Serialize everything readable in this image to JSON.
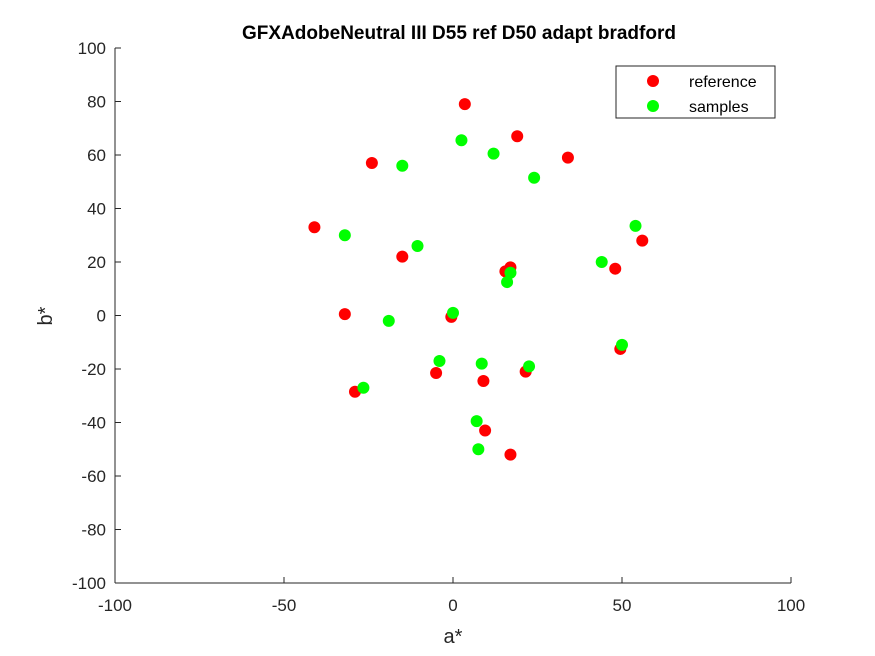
{
  "chart_data": {
    "type": "scatter",
    "title": "GFXAdobeNeutral III D55 ref D50 adapt bradford",
    "xlabel": "a*",
    "ylabel": "b*",
    "xlim": [
      -100,
      100
    ],
    "ylim": [
      -100,
      100
    ],
    "xticks": [
      -100,
      -50,
      0,
      50,
      100
    ],
    "yticks": [
      -100,
      -80,
      -60,
      -40,
      -20,
      0,
      20,
      40,
      60,
      80,
      100
    ],
    "grid": false,
    "legend_position": "top-right",
    "series": [
      {
        "name": "reference",
        "color": "#ff0000",
        "points": [
          [
            3.5,
            79
          ],
          [
            19,
            67
          ],
          [
            34,
            59
          ],
          [
            -24,
            57
          ],
          [
            -41,
            33
          ],
          [
            56,
            28
          ],
          [
            -15,
            22
          ],
          [
            48,
            17.5
          ],
          [
            17,
            18
          ],
          [
            15.5,
            16.5
          ],
          [
            -32,
            0.5
          ],
          [
            -0.5,
            -0.5
          ],
          [
            49.5,
            -12.5
          ],
          [
            -5,
            -21.5
          ],
          [
            9,
            -24.5
          ],
          [
            21.5,
            -21
          ],
          [
            -29,
            -28.5
          ],
          [
            9.5,
            -43
          ],
          [
            17,
            -52
          ]
        ]
      },
      {
        "name": "samples",
        "color": "#00ff00",
        "points": [
          [
            2.5,
            65.5
          ],
          [
            12,
            60.5
          ],
          [
            24,
            51.5
          ],
          [
            -15,
            56
          ],
          [
            -32,
            30
          ],
          [
            54,
            33.5
          ],
          [
            -10.5,
            26
          ],
          [
            44,
            20
          ],
          [
            17,
            16
          ],
          [
            16,
            12.5
          ],
          [
            -19,
            -2
          ],
          [
            0,
            1
          ],
          [
            50,
            -11
          ],
          [
            -4,
            -17
          ],
          [
            8.5,
            -18
          ],
          [
            22.5,
            -19
          ],
          [
            -26.5,
            -27
          ],
          [
            7,
            -39.5
          ],
          [
            7.5,
            -50
          ]
        ]
      }
    ]
  }
}
